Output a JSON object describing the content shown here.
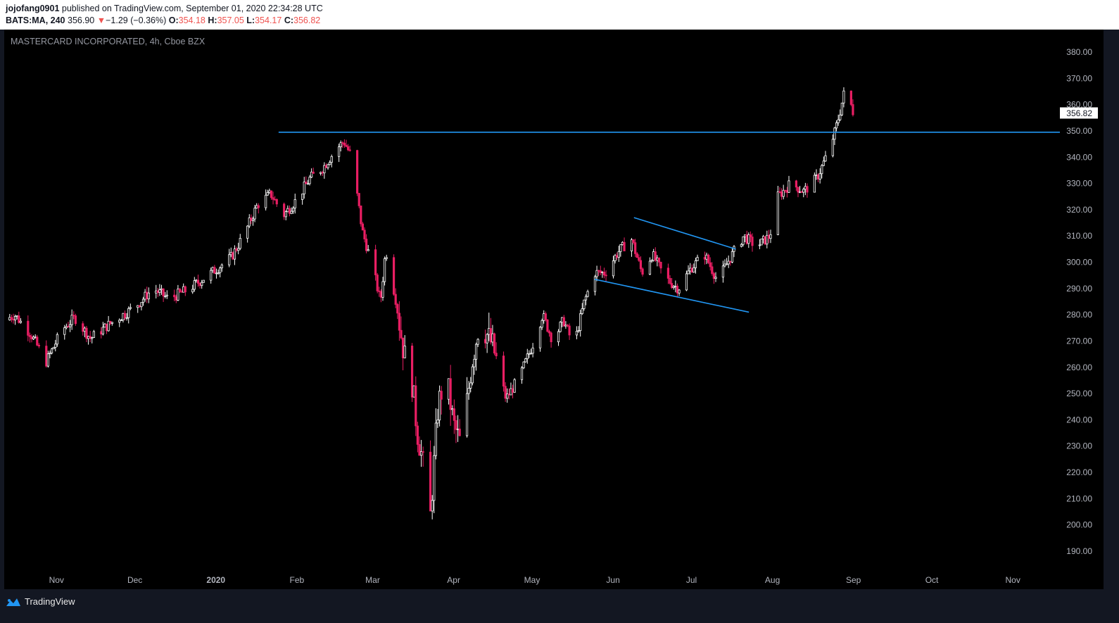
{
  "header": {
    "author": "jojofang0901",
    "published_text": "published on TradingView.com, September 01, 2020 22:34:28 UTC",
    "symbol": "BATS:MA, 240",
    "last": "356.90",
    "change_arrow": "▼",
    "change": "−1.29 (−0.36%)",
    "open_label": "O:",
    "open": "354.18",
    "high_label": "H:",
    "high": "357.05",
    "low_label": "L:",
    "low": "354.17",
    "close_label": "C:",
    "close": "356.82"
  },
  "footer": {
    "brand": "TradingView",
    "icon": "tradingview-logo-icon"
  },
  "colors": {
    "background": "#000000",
    "up_candle": "#ffffff",
    "down_candle": "#e91e63",
    "trendline": "#2196f3",
    "price_label_bg": "#ffffff"
  },
  "chart_data": {
    "type": "candlestick",
    "title": "MASTERCARD INCORPORATED, 4h, Cboe BZX",
    "xlabel": "",
    "ylabel": "",
    "ylim": [
      185,
      382
    ],
    "y_ticks": [
      "380.00",
      "370.00",
      "360.00",
      "350.00",
      "340.00",
      "330.00",
      "320.00",
      "310.00",
      "300.00",
      "290.00",
      "280.00",
      "270.00",
      "260.00",
      "250.00",
      "240.00",
      "230.00",
      "220.00",
      "210.00",
      "200.00",
      "190.00"
    ],
    "y_tick_values": [
      380,
      370,
      360,
      350,
      340,
      330,
      320,
      310,
      300,
      290,
      280,
      270,
      260,
      250,
      240,
      230,
      220,
      210,
      200,
      190
    ],
    "x_ticks": [
      "Nov",
      "Dec",
      "2020",
      "Feb",
      "Mar",
      "Apr",
      "May",
      "Jun",
      "Jul",
      "Aug",
      "Sep",
      "Oct",
      "Nov"
    ],
    "x_tick_dates": [
      "2019-11-01",
      "2019-12-01",
      "2020-01-01",
      "2020-02-01",
      "2020-03-01",
      "2020-04-01",
      "2020-05-01",
      "2020-06-01",
      "2020-07-01",
      "2020-08-01",
      "2020-09-01",
      "2020-10-01",
      "2020-11-01"
    ],
    "x_range": [
      "2019-10-12",
      "2020-11-19"
    ],
    "last_price_label": "356.82",
    "last_price": 356.82,
    "grid": false,
    "close_path": [
      [
        "2019-10-12",
        278
      ],
      [
        "2019-10-16",
        280
      ],
      [
        "2019-10-22",
        273
      ],
      [
        "2019-10-28",
        262
      ],
      [
        "2019-11-03",
        274
      ],
      [
        "2019-11-08",
        279
      ],
      [
        "2019-11-14",
        271
      ],
      [
        "2019-11-22",
        277
      ],
      [
        "2019-12-01",
        283
      ],
      [
        "2019-12-08",
        290
      ],
      [
        "2019-12-14",
        286
      ],
      [
        "2019-12-22",
        290
      ],
      [
        "2020-01-02",
        298
      ],
      [
        "2020-01-07",
        302
      ],
      [
        "2020-01-12",
        311
      ],
      [
        "2020-01-17",
        322
      ],
      [
        "2020-01-22",
        326
      ],
      [
        "2020-01-27",
        318
      ],
      [
        "2020-02-01",
        324
      ],
      [
        "2020-02-06",
        332
      ],
      [
        "2020-02-11",
        336
      ],
      [
        "2020-02-16",
        343
      ],
      [
        "2020-02-19",
        346
      ],
      [
        "2020-02-22",
        340
      ],
      [
        "2020-02-26",
        312
      ],
      [
        "2020-03-01",
        298
      ],
      [
        "2020-03-04",
        285
      ],
      [
        "2020-03-06",
        305
      ],
      [
        "2020-03-10",
        285
      ],
      [
        "2020-03-13",
        265
      ],
      [
        "2020-03-16",
        255
      ],
      [
        "2020-03-18",
        236
      ],
      [
        "2020-03-20",
        225
      ],
      [
        "2020-03-23",
        202
      ],
      [
        "2020-03-26",
        245
      ],
      [
        "2020-03-29",
        258
      ],
      [
        "2020-04-01",
        238
      ],
      [
        "2020-04-04",
        230
      ],
      [
        "2020-04-08",
        262
      ],
      [
        "2020-04-11",
        278
      ],
      [
        "2020-04-16",
        268
      ],
      [
        "2020-04-21",
        248
      ],
      [
        "2020-04-26",
        256
      ],
      [
        "2020-05-01",
        268
      ],
      [
        "2020-05-05",
        280
      ],
      [
        "2020-05-09",
        270
      ],
      [
        "2020-05-13",
        278
      ],
      [
        "2020-05-17",
        268
      ],
      [
        "2020-05-21",
        285
      ],
      [
        "2020-05-25",
        296
      ],
      [
        "2020-05-29",
        296
      ],
      [
        "2020-06-03",
        304
      ],
      [
        "2020-06-08",
        309
      ],
      [
        "2020-06-12",
        296
      ],
      [
        "2020-06-16",
        303
      ],
      [
        "2020-06-21",
        294
      ],
      [
        "2020-06-26",
        290
      ],
      [
        "2020-07-01",
        298
      ],
      [
        "2020-07-06",
        303
      ],
      [
        "2020-07-11",
        293
      ],
      [
        "2020-07-16",
        302
      ],
      [
        "2020-07-21",
        310
      ],
      [
        "2020-07-26",
        306
      ],
      [
        "2020-07-31",
        310
      ],
      [
        "2020-08-03",
        325
      ],
      [
        "2020-08-08",
        330
      ],
      [
        "2020-08-13",
        327
      ],
      [
        "2020-08-18",
        332
      ],
      [
        "2020-08-22",
        341
      ],
      [
        "2020-08-25",
        350
      ],
      [
        "2020-08-27",
        358
      ],
      [
        "2020-08-29",
        367
      ],
      [
        "2020-08-31",
        360
      ],
      [
        "2020-09-01",
        356.82
      ]
    ],
    "horizontal_line": {
      "y": 349.5,
      "x_start": "2020-01-25",
      "x_end": "2020-11-19"
    },
    "trendlines": [
      {
        "from": [
          "2020-06-09",
          317
        ],
        "to": [
          "2020-07-18",
          305
        ]
      },
      {
        "from": [
          "2020-05-25",
          293.5
        ],
        "to": [
          "2020-07-23",
          281
        ]
      }
    ]
  }
}
